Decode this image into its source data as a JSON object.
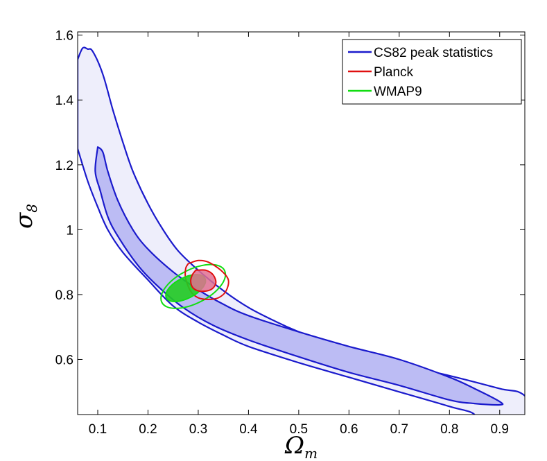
{
  "chart_data": {
    "type": "contour",
    "title": "",
    "xlabel": "Ω",
    "xlabel_sub": "m",
    "ylabel": "σ",
    "ylabel_sub": "8",
    "xlim": [
      0.06,
      0.95
    ],
    "ylim": [
      0.43,
      1.61
    ],
    "x_ticks": [
      0.1,
      0.2,
      0.3,
      0.4,
      0.5,
      0.6,
      0.7,
      0.8,
      0.9
    ],
    "x_tick_labels": [
      "0.1",
      "0.2",
      "0.3",
      "0.4",
      "0.5",
      "0.6",
      "0.7",
      "0.8",
      "0.9"
    ],
    "y_ticks": [
      0.6,
      0.8,
      1.0,
      1.2,
      1.4,
      1.6
    ],
    "y_tick_labels": [
      "0.6",
      "0.8",
      "1",
      "1.2",
      "1.4",
      "1.6"
    ],
    "legend_position": "top-right",
    "series": [
      {
        "name": "CS82 peak statistics",
        "color": "#1a1acc",
        "fill_outer": "#eeeefb",
        "fill_inner": "#bcbcf4",
        "outer_upper": [
          [
            0.06,
            1.525
          ],
          [
            0.07,
            1.56
          ],
          [
            0.08,
            1.557
          ],
          [
            0.09,
            1.55
          ],
          [
            0.11,
            1.48
          ],
          [
            0.13,
            1.37
          ],
          [
            0.15,
            1.27
          ],
          [
            0.17,
            1.18
          ],
          [
            0.2,
            1.08
          ],
          [
            0.23,
            1.0
          ],
          [
            0.26,
            0.935
          ],
          [
            0.3,
            0.875
          ],
          [
            0.35,
            0.812
          ],
          [
            0.4,
            0.76
          ],
          [
            0.45,
            0.72
          ],
          [
            0.5,
            0.685
          ],
          [
            0.6,
            0.625
          ],
          [
            0.7,
            0.585
          ],
          [
            0.8,
            0.55
          ],
          [
            0.9,
            0.51
          ],
          [
            0.95,
            0.488
          ]
        ],
        "outer_lower": [
          [
            0.06,
            1.25
          ],
          [
            0.08,
            1.15
          ],
          [
            0.1,
            1.07
          ],
          [
            0.12,
            1.0
          ],
          [
            0.15,
            0.93
          ],
          [
            0.2,
            0.845
          ],
          [
            0.25,
            0.765
          ],
          [
            0.3,
            0.715
          ],
          [
            0.35,
            0.675
          ],
          [
            0.4,
            0.64
          ],
          [
            0.5,
            0.59
          ],
          [
            0.6,
            0.545
          ],
          [
            0.7,
            0.5
          ],
          [
            0.8,
            0.455
          ],
          [
            0.85,
            0.43
          ]
        ],
        "inner_upper": [
          [
            0.1,
            1.255
          ],
          [
            0.11,
            1.24
          ],
          [
            0.12,
            1.18
          ],
          [
            0.14,
            1.09
          ],
          [
            0.17,
            1.0
          ],
          [
            0.2,
            0.94
          ],
          [
            0.25,
            0.87
          ],
          [
            0.3,
            0.815
          ],
          [
            0.35,
            0.77
          ],
          [
            0.4,
            0.735
          ],
          [
            0.5,
            0.685
          ],
          [
            0.6,
            0.64
          ],
          [
            0.7,
            0.6
          ],
          [
            0.8,
            0.545
          ],
          [
            0.85,
            0.51
          ],
          [
            0.9,
            0.47
          ]
        ],
        "inner_lower": [
          [
            0.9,
            0.46
          ],
          [
            0.85,
            0.464
          ],
          [
            0.8,
            0.475
          ],
          [
            0.7,
            0.52
          ],
          [
            0.6,
            0.56
          ],
          [
            0.5,
            0.608
          ],
          [
            0.4,
            0.66
          ],
          [
            0.33,
            0.705
          ],
          [
            0.27,
            0.76
          ],
          [
            0.22,
            0.825
          ],
          [
            0.18,
            0.89
          ],
          [
            0.14,
            0.98
          ],
          [
            0.12,
            1.04
          ],
          [
            0.105,
            1.12
          ],
          [
            0.095,
            1.18
          ],
          [
            0.1,
            1.255
          ]
        ]
      },
      {
        "name": "Planck",
        "color": "#e01010",
        "fill_inner": "#e07090",
        "outer": [
          [
            0.28,
            0.895
          ],
          [
            0.3,
            0.905
          ],
          [
            0.32,
            0.9
          ],
          [
            0.345,
            0.875
          ],
          [
            0.36,
            0.845
          ],
          [
            0.355,
            0.81
          ],
          [
            0.34,
            0.79
          ],
          [
            0.32,
            0.785
          ],
          [
            0.3,
            0.79
          ],
          [
            0.285,
            0.81
          ],
          [
            0.275,
            0.85
          ],
          [
            0.275,
            0.88
          ],
          [
            0.28,
            0.895
          ]
        ],
        "inner": [
          [
            0.295,
            0.875
          ],
          [
            0.315,
            0.875
          ],
          [
            0.33,
            0.86
          ],
          [
            0.335,
            0.835
          ],
          [
            0.325,
            0.815
          ],
          [
            0.305,
            0.81
          ],
          [
            0.29,
            0.82
          ],
          [
            0.285,
            0.84
          ],
          [
            0.288,
            0.86
          ],
          [
            0.295,
            0.875
          ]
        ]
      },
      {
        "name": "WMAP9",
        "color": "#11dd11",
        "fill_inner": "#22cc22",
        "outer": {
          "cx": 0.29,
          "cy": 0.825,
          "rx": 0.07,
          "ry": 0.052,
          "tilt_deg": 27
        },
        "inner": {
          "cx": 0.275,
          "cy": 0.82,
          "rx": 0.043,
          "ry": 0.032,
          "tilt_deg": 27
        }
      }
    ]
  }
}
